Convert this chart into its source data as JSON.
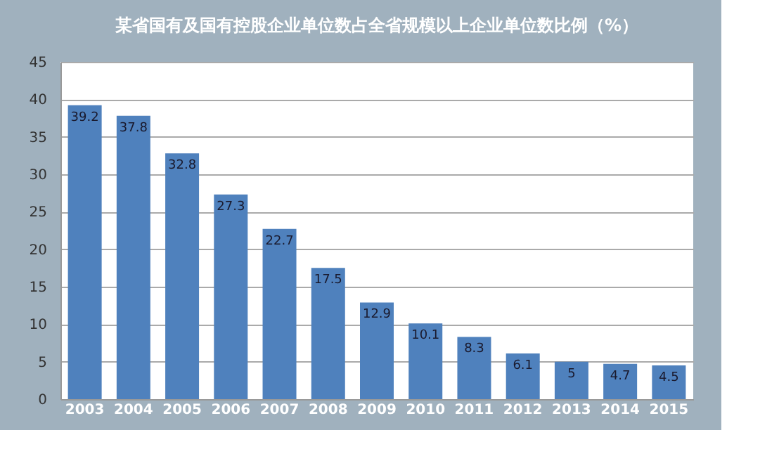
{
  "chart_data": {
    "type": "bar",
    "title": "某省国有及国有控股企业单位数占全省规模以上企业单位数比例（%）",
    "categories": [
      "2003",
      "2004",
      "2005",
      "2006",
      "2007",
      "2008",
      "2009",
      "2010",
      "2011",
      "2012",
      "2013",
      "2014",
      "2015"
    ],
    "values": [
      39.2,
      37.8,
      32.8,
      27.3,
      22.7,
      17.5,
      12.9,
      10.1,
      8.3,
      6.1,
      5,
      4.7,
      4.5
    ],
    "color": "#4f81bd",
    "ylim": [
      0,
      45
    ],
    "yticks": [
      0,
      5,
      10,
      15,
      20,
      25,
      30,
      35,
      40,
      45
    ],
    "grid": "y",
    "data_labels": true
  }
}
